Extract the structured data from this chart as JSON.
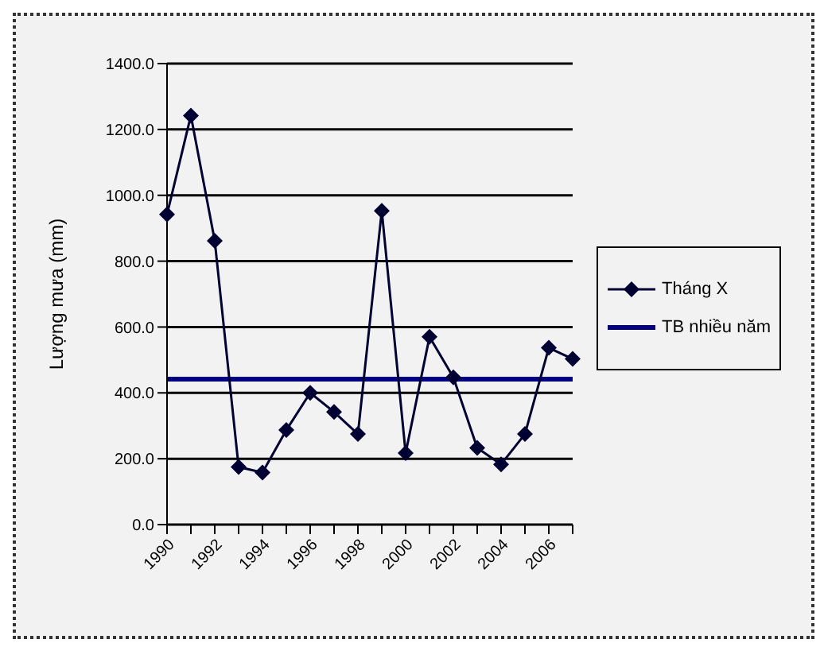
{
  "chart_data": {
    "type": "line",
    "ylabel": "Lượng mưa (mm)",
    "categories": [
      "1990",
      null,
      "1992",
      null,
      "1994",
      null,
      "1996",
      null,
      "1998",
      null,
      "2000",
      null,
      "2002",
      null,
      "2004",
      null,
      "2006",
      null
    ],
    "series": [
      {
        "name": "Tháng X",
        "color": "#000033",
        "values": [
          942,
          1242,
          862,
          175,
          158,
          287,
          400,
          342,
          275,
          953,
          217,
          570,
          447,
          233,
          183,
          275,
          537,
          503
        ]
      }
    ],
    "ref_lines": [
      {
        "axis": "y",
        "value": 442,
        "label": "TB nhiều năm",
        "color": "#000080"
      }
    ],
    "ylim": [
      0,
      1400
    ],
    "yticks": [
      {
        "value": 0,
        "label": "0.0"
      },
      {
        "value": 200,
        "label": "200.0"
      },
      {
        "value": 400,
        "label": "400.0"
      },
      {
        "value": 600,
        "label": "600.0"
      },
      {
        "value": 800,
        "label": "800.0"
      },
      {
        "value": 1000,
        "label": "1000.0"
      },
      {
        "value": 1200,
        "label": "1200.0"
      },
      {
        "value": 1400,
        "label": "1400.0"
      }
    ],
    "grid": "y",
    "legend": "right",
    "marker": "diamond",
    "line_style": "solid"
  }
}
